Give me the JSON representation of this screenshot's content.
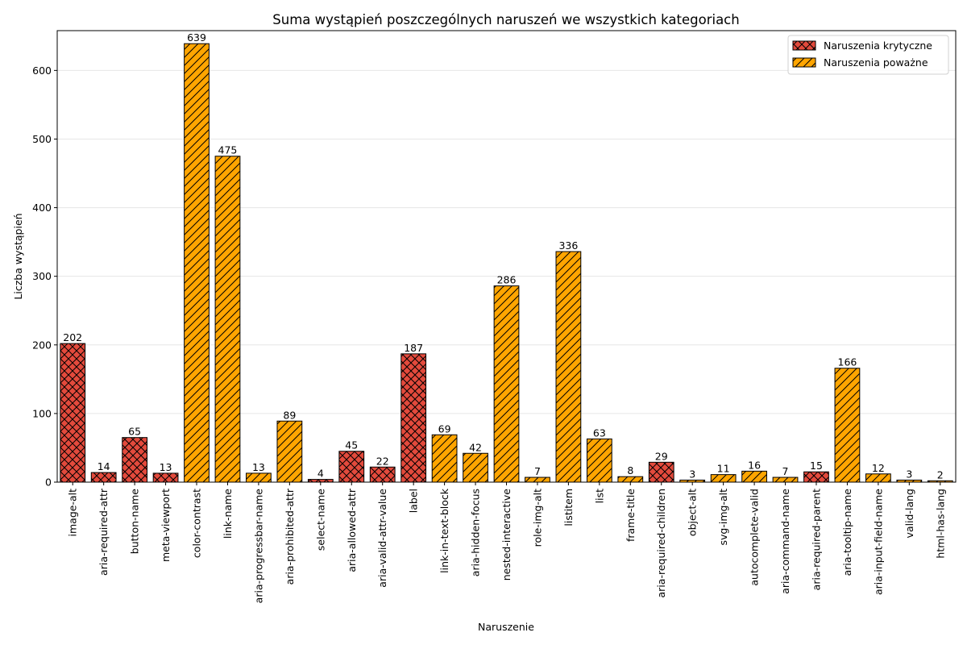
{
  "chart_data": {
    "type": "bar",
    "title": "Suma wystąpień poszczególnych naruszeń we wszystkich kategoriach",
    "xlabel": "Naruszenie",
    "ylabel": "Liczba wystąpień",
    "ylim": [
      0,
      658
    ],
    "yticks": [
      0,
      100,
      200,
      300,
      400,
      500,
      600
    ],
    "grid": "horizontal",
    "legend_position": "top-right",
    "colors": {
      "krytyczne": "#e34a3c",
      "powazne": "#ffa500",
      "edge": "#000000",
      "grid": "#e6e6e6"
    },
    "legend": [
      {
        "key": "krytyczne",
        "label": "Naruszenia krytyczne",
        "hatch": "cross"
      },
      {
        "key": "powazne",
        "label": "Naruszenia poważne",
        "hatch": "diagonal"
      }
    ],
    "categories": [
      "image-alt",
      "aria-required-attr",
      "button-name",
      "meta-viewport",
      "color-contrast",
      "link-name",
      "aria-progressbar-name",
      "aria-prohibited-attr",
      "select-name",
      "aria-allowed-attr",
      "aria-valid-attr-value",
      "label",
      "link-in-text-block",
      "aria-hidden-focus",
      "nested-interactive",
      "role-img-alt",
      "listitem",
      "list",
      "frame-title",
      "aria-required-children",
      "object-alt",
      "svg-img-alt",
      "autocomplete-valid",
      "aria-command-name",
      "aria-required-parent",
      "aria-tooltip-name",
      "aria-input-field-name",
      "valid-lang",
      "html-has-lang"
    ],
    "values": [
      202,
      14,
      65,
      13,
      639,
      475,
      13,
      89,
      4,
      45,
      22,
      187,
      69,
      42,
      286,
      7,
      336,
      63,
      8,
      29,
      3,
      11,
      16,
      7,
      15,
      166,
      12,
      3,
      2
    ],
    "severity": [
      "krytyczne",
      "krytyczne",
      "krytyczne",
      "krytyczne",
      "powazne",
      "powazne",
      "powazne",
      "powazne",
      "krytyczne",
      "krytyczne",
      "krytyczne",
      "krytyczne",
      "powazne",
      "powazne",
      "powazne",
      "powazne",
      "powazne",
      "powazne",
      "powazne",
      "krytyczne",
      "powazne",
      "powazne",
      "powazne",
      "powazne",
      "krytyczne",
      "powazne",
      "powazne",
      "powazne",
      "powazne"
    ]
  }
}
